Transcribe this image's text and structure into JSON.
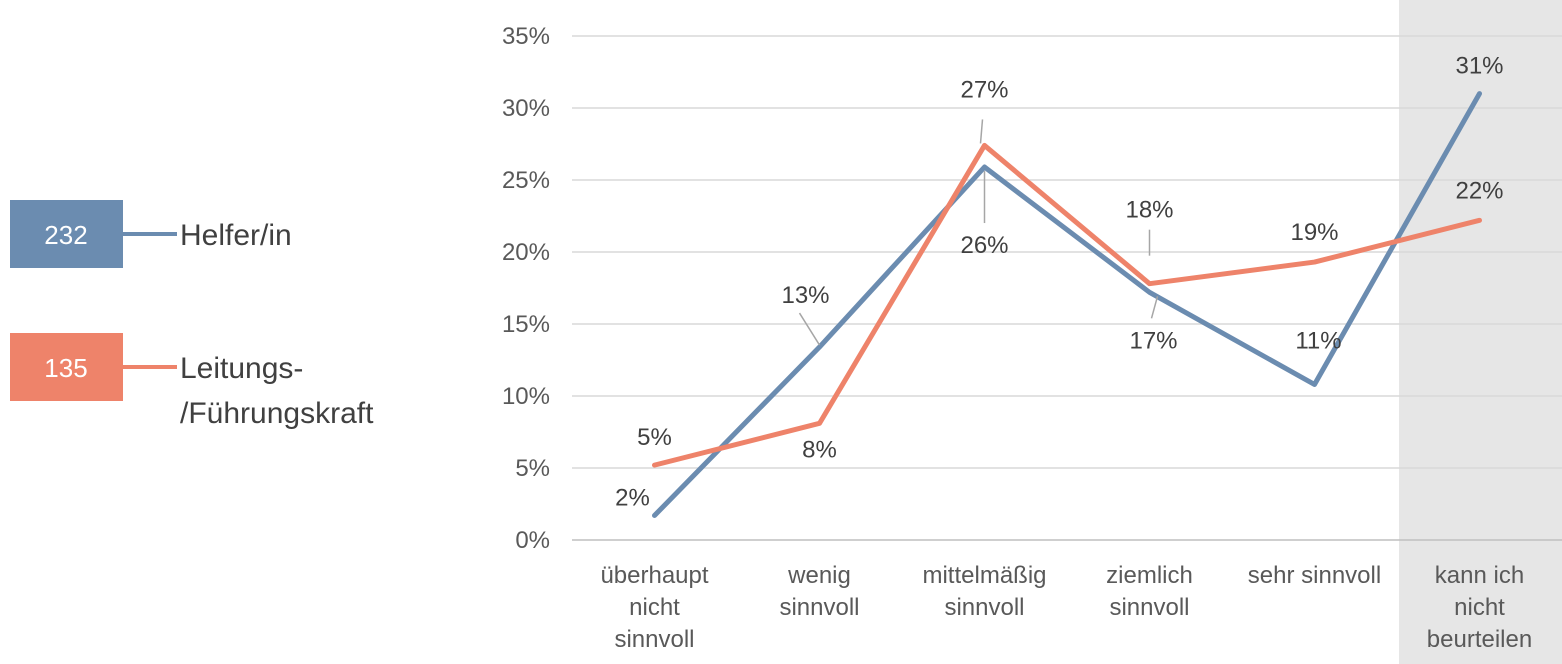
{
  "colors": {
    "helfer": "#6B8CB0",
    "leitung": "#EE836A",
    "highlight": "#E6E6E6",
    "grid": "#D9D9D9"
  },
  "legend": [
    {
      "count": "232",
      "name_lines": [
        "Helfer/in"
      ],
      "color": "#6B8CB0"
    },
    {
      "count": "135",
      "name_lines": [
        "Leitungs-",
        "/Führungskraft"
      ],
      "color": "#EE836A"
    }
  ],
  "chart_data": {
    "type": "line",
    "title": "",
    "xlabel": "",
    "ylabel": "",
    "ylim": [
      0,
      35
    ],
    "yticks": [
      "0%",
      "5%",
      "10%",
      "15%",
      "20%",
      "25%",
      "30%",
      "35%"
    ],
    "grid": true,
    "legend_position": "left",
    "categories": [
      [
        "überhaupt",
        "nicht",
        "sinnvoll"
      ],
      [
        "wenig",
        "sinnvoll"
      ],
      [
        "mittelmäßig",
        "sinnvoll"
      ],
      [
        "ziemlich",
        "sinnvoll"
      ],
      [
        "sehr sinnvoll"
      ],
      [
        "kann ich",
        "nicht",
        "beurteilen"
      ]
    ],
    "highlighted_category": 5,
    "series": [
      {
        "name": "Helfer/in",
        "values": [
          1.7,
          13.4,
          25.9,
          17.2,
          10.8,
          31.0
        ],
        "labels": [
          "2%",
          "13%",
          "26%",
          "17%",
          "11%",
          "31%"
        ]
      },
      {
        "name": "Leitungs-/Führungskraft",
        "values": [
          5.2,
          8.1,
          27.4,
          17.8,
          19.3,
          22.2
        ],
        "labels": [
          "5%",
          "8%",
          "27%",
          "18%",
          "19%",
          "22%"
        ]
      }
    ]
  }
}
